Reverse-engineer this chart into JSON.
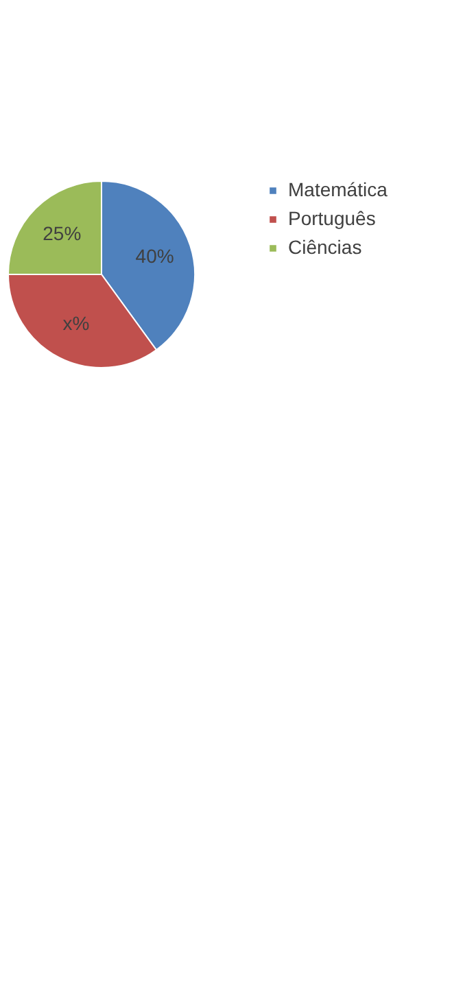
{
  "chart_data": {
    "type": "pie",
    "categories": [
      "Matemática",
      "Português",
      "Ciências"
    ],
    "values": [
      40,
      35,
      25
    ],
    "colors": [
      "#4f81bd",
      "#c0504d",
      "#9bbb59"
    ],
    "value_labels": [
      "40%",
      "x%",
      "25%"
    ],
    "legend": "right"
  }
}
